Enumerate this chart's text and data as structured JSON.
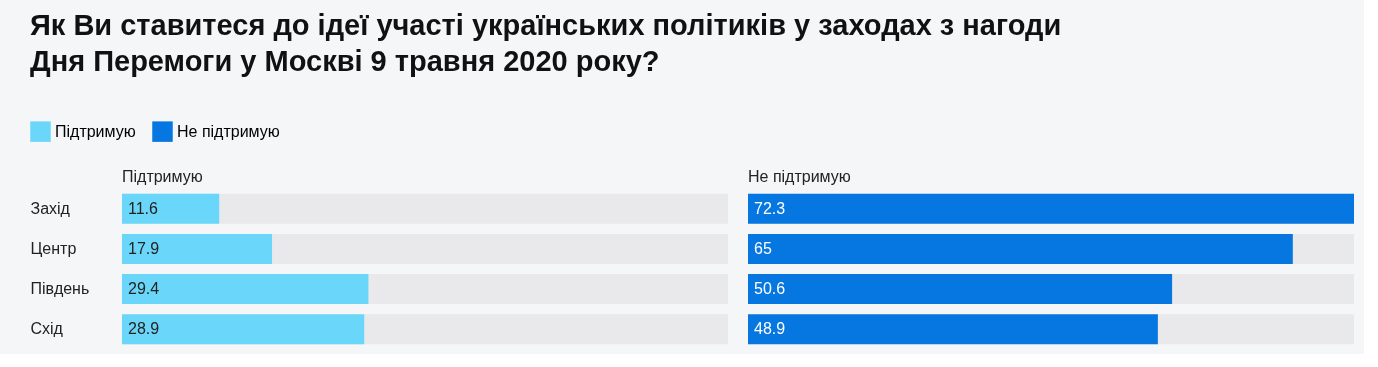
{
  "chart_data": [
    {
      "type": "bar",
      "orientation": "horizontal",
      "title": "Як Ви ставитеся до ідеї участі українських політиків у заходах з нагоди Дня Перемоги у Москві 9 травня 2020 року?",
      "subtitle": "Підтримую",
      "categories": [
        "Захід",
        "Центр",
        "Південь",
        "Схід"
      ],
      "series": [
        {
          "name": "Підтримую",
          "color": "#6ad7fa",
          "values": [
            11.6,
            17.9,
            29.4,
            28.9
          ]
        }
      ],
      "xlim": [
        0,
        72.3
      ],
      "data_labels": true,
      "tick_labels": "y",
      "legend": "top left"
    },
    {
      "type": "bar",
      "orientation": "horizontal",
      "subtitle": "Не підтримую",
      "categories": [
        null,
        null,
        null,
        null
      ],
      "series": [
        {
          "name": "Не підтримую",
          "color": "#0677e0",
          "values": [
            72.3,
            65,
            50.6,
            48.9
          ]
        }
      ],
      "xlim": [
        0,
        72.3
      ],
      "data_labels": true,
      "tick_labels": false,
      "legend": "top left"
    }
  ]
}
